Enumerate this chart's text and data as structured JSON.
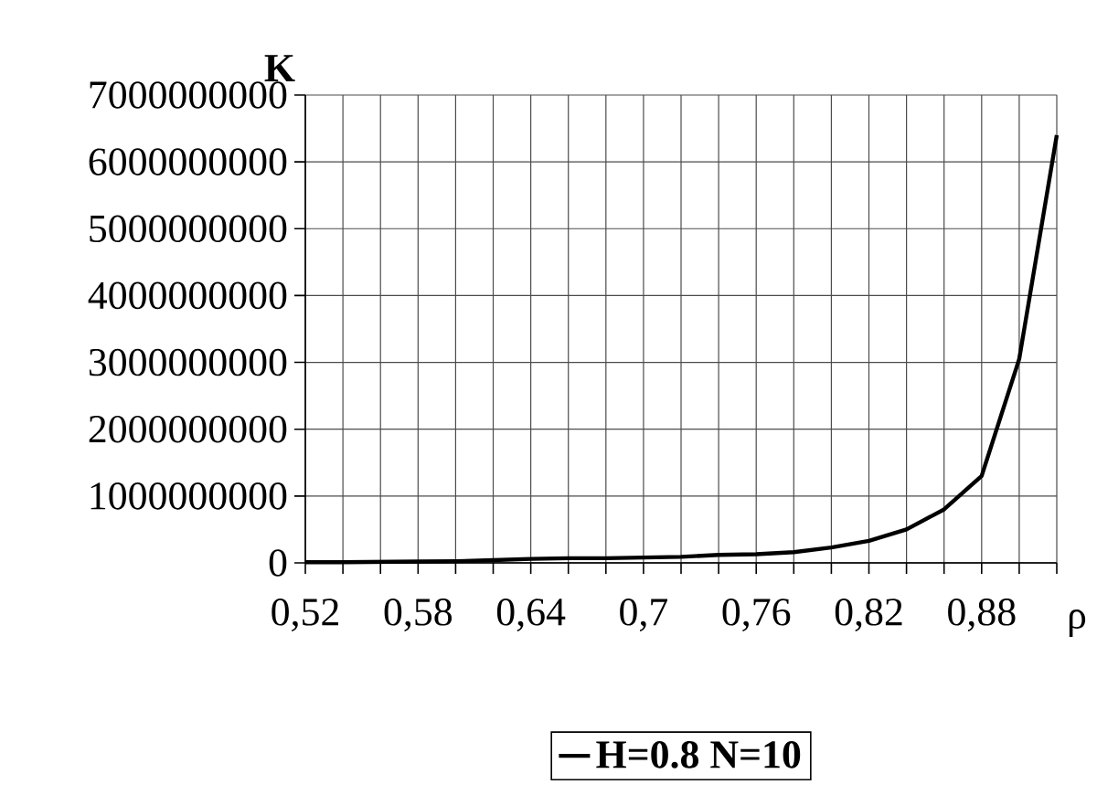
{
  "chart_data": {
    "type": "line",
    "xlabel": "ρ",
    "ylabel": "K",
    "x": [
      0.52,
      0.54,
      0.56,
      0.58,
      0.6,
      0.62,
      0.64,
      0.66,
      0.68,
      0.7,
      0.72,
      0.74,
      0.76,
      0.78,
      0.8,
      0.82,
      0.84,
      0.86,
      0.88,
      0.9,
      0.92
    ],
    "series": [
      {
        "name": "H=0.8 N=10",
        "color": "#000000",
        "values": [
          10000000,
          10000000,
          15000000,
          20000000,
          25000000,
          40000000,
          60000000,
          70000000,
          70000000,
          80000000,
          90000000,
          120000000,
          130000000,
          160000000,
          230000000,
          330000000,
          500000000,
          800000000,
          1300000000,
          3050000000,
          6400000000
        ]
      }
    ],
    "xlim": [
      0.52,
      0.92
    ],
    "xticks": [
      {
        "value": 0.52,
        "label": "0,52"
      },
      {
        "value": 0.54,
        "label": null
      },
      {
        "value": 0.56,
        "label": null
      },
      {
        "value": 0.58,
        "label": "0,58"
      },
      {
        "value": 0.6,
        "label": null
      },
      {
        "value": 0.62,
        "label": null
      },
      {
        "value": 0.64,
        "label": "0,64"
      },
      {
        "value": 0.66,
        "label": null
      },
      {
        "value": 0.68,
        "label": null
      },
      {
        "value": 0.7,
        "label": "0,7"
      },
      {
        "value": 0.72,
        "label": null
      },
      {
        "value": 0.74,
        "label": null
      },
      {
        "value": 0.76,
        "label": "0,76"
      },
      {
        "value": 0.78,
        "label": null
      },
      {
        "value": 0.8,
        "label": null
      },
      {
        "value": 0.82,
        "label": "0,82"
      },
      {
        "value": 0.84,
        "label": null
      },
      {
        "value": 0.86,
        "label": null
      },
      {
        "value": 0.88,
        "label": "0,88"
      },
      {
        "value": 0.9,
        "label": null
      },
      {
        "value": 0.92,
        "label": null
      }
    ],
    "ylim": [
      0,
      7000000000
    ],
    "yticks": [
      0,
      1000000000,
      2000000000,
      3000000000,
      4000000000,
      5000000000,
      6000000000,
      7000000000
    ],
    "grid": true,
    "legend": "bottom",
    "marker": "none",
    "line_style": "solid"
  }
}
